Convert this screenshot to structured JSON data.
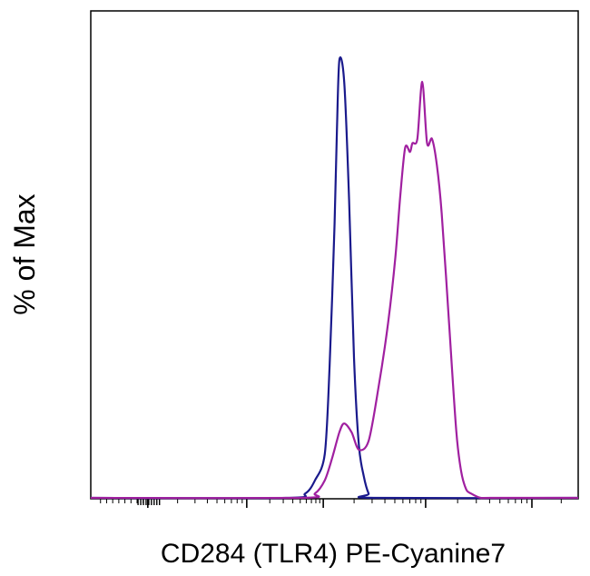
{
  "chart_data": {
    "type": "line",
    "title": "",
    "xlabel": "CD284 (TLR4) PE-Cyanine7",
    "ylabel": "% of Max",
    "x_scale": "biexponential",
    "ylim": [
      0,
      100
    ],
    "grid": false,
    "legend": "none",
    "series": [
      {
        "color": "#1a1a8c",
        "x": [
          0.4,
          0.44,
          0.46,
          0.48,
          0.49,
          0.5,
          0.505,
          0.51,
          0.52,
          0.53,
          0.54,
          0.55,
          0.56,
          0.57,
          0.58
        ],
        "y": [
          0,
          1,
          4,
          10,
          30,
          62,
          84,
          100,
          95,
          68,
          32,
          12,
          5,
          1,
          0
        ]
      },
      {
        "color": "#a020a0",
        "x": [
          0.43,
          0.46,
          0.48,
          0.495,
          0.51,
          0.52,
          0.535,
          0.55,
          0.57,
          0.59,
          0.61,
          0.625,
          0.635,
          0.645,
          0.655,
          0.66,
          0.67,
          0.68,
          0.69,
          0.7,
          0.71,
          0.72,
          0.735,
          0.75,
          0.76,
          0.77,
          0.78,
          0.8,
          0.82
        ],
        "y": [
          0,
          1,
          4,
          9,
          15,
          17,
          15,
          11,
          13,
          25,
          40,
          55,
          69,
          80,
          79,
          81,
          82,
          95,
          81,
          82,
          76,
          65,
          40,
          15,
          6,
          2,
          1,
          0,
          0
        ]
      }
    ]
  }
}
